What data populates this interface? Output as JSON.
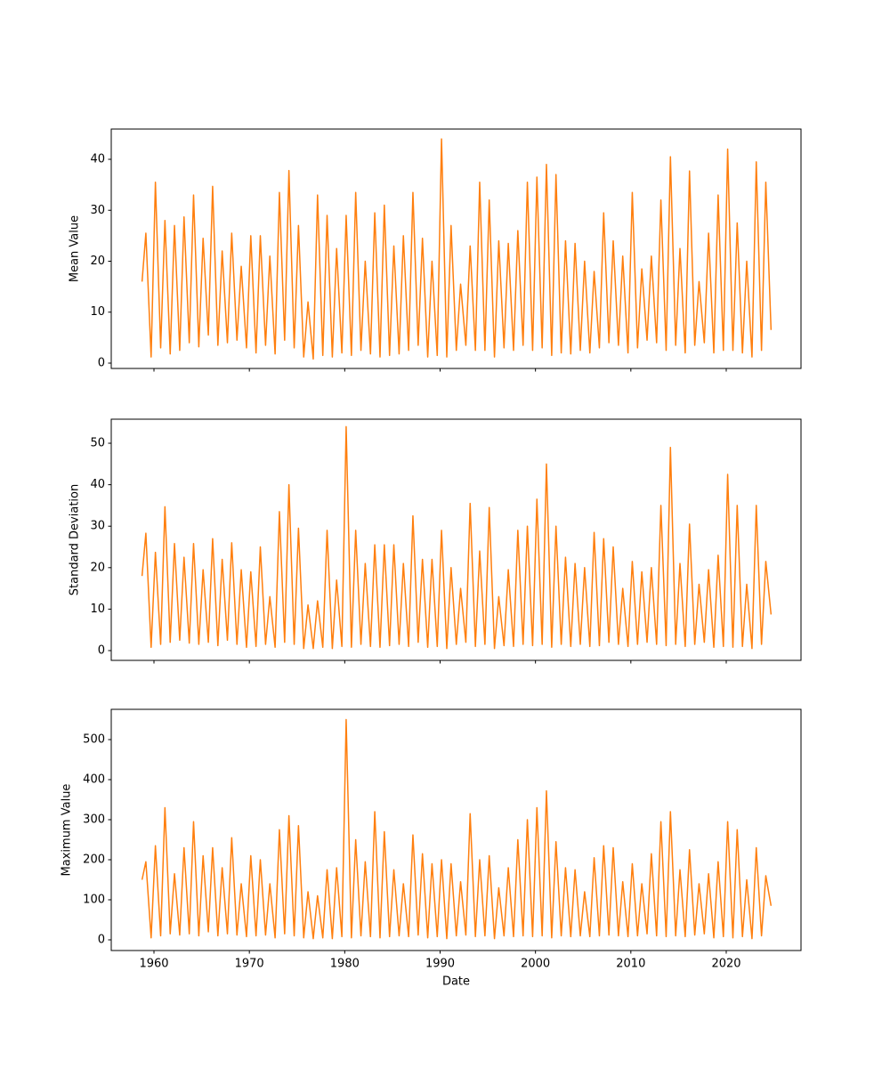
{
  "chart_data": [
    {
      "type": "line",
      "ylabel": "Mean Value",
      "xlim": [
        1955.52,
        2027.84
      ],
      "ylim": [
        -1.05,
        45.94
      ],
      "yticks": [
        0,
        10,
        20,
        30,
        40
      ],
      "x": [
        1958.75,
        1959.15,
        1959.7,
        1960.15,
        1960.7,
        1961.15,
        1961.7,
        1962.15,
        1962.7,
        1963.15,
        1963.7,
        1964.15,
        1964.7,
        1965.15,
        1965.7,
        1966.15,
        1966.7,
        1967.15,
        1967.7,
        1968.15,
        1968.7,
        1969.15,
        1969.7,
        1970.15,
        1970.7,
        1971.15,
        1971.7,
        1972.15,
        1972.7,
        1973.15,
        1973.7,
        1974.15,
        1974.7,
        1975.15,
        1975.7,
        1976.15,
        1976.7,
        1977.15,
        1977.7,
        1978.15,
        1978.7,
        1979.15,
        1979.7,
        1980.15,
        1980.7,
        1981.15,
        1981.7,
        1982.15,
        1982.7,
        1983.15,
        1983.7,
        1984.15,
        1984.7,
        1985.15,
        1985.7,
        1986.15,
        1986.7,
        1987.15,
        1987.7,
        1988.15,
        1988.7,
        1989.15,
        1989.7,
        1990.15,
        1990.7,
        1991.15,
        1991.7,
        1992.15,
        1992.7,
        1993.15,
        1993.7,
        1994.15,
        1994.7,
        1995.15,
        1995.7,
        1996.15,
        1996.7,
        1997.15,
        1997.7,
        1998.15,
        1998.7,
        1999.15,
        1999.7,
        2000.15,
        2000.7,
        2001.15,
        2001.7,
        2002.15,
        2002.7,
        2003.15,
        2003.7,
        2004.15,
        2004.7,
        2005.15,
        2005.7,
        2006.15,
        2006.7,
        2007.15,
        2007.7,
        2008.15,
        2008.7,
        2009.15,
        2009.7,
        2010.15,
        2010.7,
        2011.15,
        2011.7,
        2012.15,
        2012.7,
        2013.15,
        2013.7,
        2014.15,
        2014.7,
        2015.15,
        2015.7,
        2016.15,
        2016.7,
        2017.15,
        2017.7,
        2018.15,
        2018.7,
        2019.15,
        2019.7,
        2020.15,
        2020.7,
        2021.15,
        2021.7,
        2022.15,
        2022.7,
        2023.15,
        2023.7,
        2024.15,
        2024.7
      ],
      "series": [
        {
          "color": "#ff7f0e",
          "values": [
            16,
            25.5,
            1.2,
            35.5,
            3,
            28,
            1.8,
            27,
            2.5,
            28.7,
            4,
            33,
            3.2,
            24.5,
            5.5,
            34.7,
            3.5,
            22,
            4,
            25.5,
            4.5,
            19,
            3,
            25,
            2,
            25,
            3.5,
            21,
            1.8,
            33.5,
            4.5,
            37.8,
            3,
            27,
            1.2,
            12,
            0.8,
            33,
            1.5,
            29,
            1.2,
            22.5,
            2,
            29,
            1.5,
            33.5,
            2.5,
            20,
            1.8,
            29.5,
            1.2,
            31,
            1.5,
            23,
            1.8,
            25,
            2.5,
            33.5,
            3.5,
            24.5,
            1.2,
            20,
            1.5,
            44,
            1.2,
            27,
            2.5,
            15.5,
            3.5,
            23,
            2.5,
            35.5,
            2.5,
            32,
            1.2,
            24,
            3,
            23.5,
            2.5,
            26,
            3.5,
            35.5,
            2.5,
            36.5,
            3,
            39,
            1.5,
            37,
            2,
            24,
            1.8,
            23.5,
            2.5,
            20,
            2,
            18,
            3,
            29.5,
            4,
            24,
            3.5,
            21,
            2,
            33.5,
            3,
            18.5,
            4.5,
            21,
            4,
            32,
            2.5,
            40.5,
            3.5,
            22.5,
            2,
            37.7,
            3.5,
            16,
            4,
            25.5,
            2,
            33,
            2.5,
            42,
            2.5,
            27.5,
            2,
            20,
            1.2,
            39.5,
            2.5,
            35.5,
            6.5
          ]
        }
      ]
    },
    {
      "type": "line",
      "ylabel": "Standard Deviation",
      "xlim": [
        1955.52,
        2027.84
      ],
      "ylim": [
        -2.36,
        55.8
      ],
      "yticks": [
        0,
        10,
        20,
        30,
        40,
        50
      ],
      "x": [
        1958.75,
        1959.15,
        1959.7,
        1960.15,
        1960.7,
        1961.15,
        1961.7,
        1962.15,
        1962.7,
        1963.15,
        1963.7,
        1964.15,
        1964.7,
        1965.15,
        1965.7,
        1966.15,
        1966.7,
        1967.15,
        1967.7,
        1968.15,
        1968.7,
        1969.15,
        1969.7,
        1970.15,
        1970.7,
        1971.15,
        1971.7,
        1972.15,
        1972.7,
        1973.15,
        1973.7,
        1974.15,
        1974.7,
        1975.15,
        1975.7,
        1976.15,
        1976.7,
        1977.15,
        1977.7,
        1978.15,
        1978.7,
        1979.15,
        1979.7,
        1980.15,
        1980.7,
        1981.15,
        1981.7,
        1982.15,
        1982.7,
        1983.15,
        1983.7,
        1984.15,
        1984.7,
        1985.15,
        1985.7,
        1986.15,
        1986.7,
        1987.15,
        1987.7,
        1988.15,
        1988.7,
        1989.15,
        1989.7,
        1990.15,
        1990.7,
        1991.15,
        1991.7,
        1992.15,
        1992.7,
        1993.15,
        1993.7,
        1994.15,
        1994.7,
        1995.15,
        1995.7,
        1996.15,
        1996.7,
        1997.15,
        1997.7,
        1998.15,
        1998.7,
        1999.15,
        1999.7,
        2000.15,
        2000.7,
        2001.15,
        2001.7,
        2002.15,
        2002.7,
        2003.15,
        2003.7,
        2004.15,
        2004.7,
        2005.15,
        2005.7,
        2006.15,
        2006.7,
        2007.15,
        2007.7,
        2008.15,
        2008.7,
        2009.15,
        2009.7,
        2010.15,
        2010.7,
        2011.15,
        2011.7,
        2012.15,
        2012.7,
        2013.15,
        2013.7,
        2014.15,
        2014.7,
        2015.15,
        2015.7,
        2016.15,
        2016.7,
        2017.15,
        2017.7,
        2018.15,
        2018.7,
        2019.15,
        2019.7,
        2020.15,
        2020.7,
        2021.15,
        2021.7,
        2022.15,
        2022.7,
        2023.15,
        2023.7,
        2024.15,
        2024.7
      ],
      "series": [
        {
          "color": "#ff7f0e",
          "values": [
            18,
            28.3,
            0.8,
            23.7,
            1.5,
            34.7,
            2,
            25.8,
            2.5,
            22.5,
            1.8,
            25.8,
            1.5,
            19.5,
            2,
            27,
            1.2,
            22,
            2.5,
            26,
            1.5,
            19.5,
            0.8,
            19,
            1,
            25,
            1.5,
            13,
            0.8,
            33.5,
            2,
            40,
            1.5,
            29.5,
            0.5,
            11,
            0.5,
            12,
            0.8,
            29,
            0.5,
            17,
            1,
            54,
            0.8,
            29,
            1.5,
            21,
            1,
            25.5,
            0.8,
            25.5,
            1.2,
            25.5,
            1.5,
            21,
            1,
            32.5,
            2,
            22,
            0.8,
            22,
            1,
            29,
            0.5,
            20,
            1.5,
            15,
            2,
            35.5,
            1,
            24,
            1.5,
            34.5,
            0.5,
            13,
            1.2,
            19.5,
            1,
            29,
            1.5,
            30,
            1.2,
            36.5,
            1.5,
            45,
            0.8,
            30,
            1.5,
            22.5,
            1,
            21,
            1.5,
            20,
            1,
            28.5,
            1.2,
            27,
            2,
            25,
            1.5,
            15,
            1,
            21.5,
            1.5,
            19,
            2,
            20,
            1.5,
            35,
            1.2,
            49,
            1.5,
            21,
            1,
            30.5,
            1.5,
            16,
            2,
            19.5,
            0.8,
            23,
            1,
            42.5,
            0.8,
            35,
            1,
            16,
            0.5,
            35,
            1.5,
            21.5,
            8.7
          ]
        }
      ]
    },
    {
      "type": "line",
      "ylabel": "Maximum Value",
      "xlabel": "Date",
      "xlim": [
        1955.52,
        2027.84
      ],
      "ylim": [
        -26.7,
        575.6
      ],
      "yticks": [
        0,
        100,
        200,
        300,
        400,
        500
      ],
      "xticks": [
        1960,
        1970,
        1980,
        1990,
        2000,
        2010,
        2020
      ],
      "x": [
        1958.75,
        1959.15,
        1959.7,
        1960.15,
        1960.7,
        1961.15,
        1961.7,
        1962.15,
        1962.7,
        1963.15,
        1963.7,
        1964.15,
        1964.7,
        1965.15,
        1965.7,
        1966.15,
        1966.7,
        1967.15,
        1967.7,
        1968.15,
        1968.7,
        1969.15,
        1969.7,
        1970.15,
        1970.7,
        1971.15,
        1971.7,
        1972.15,
        1972.7,
        1973.15,
        1973.7,
        1974.15,
        1974.7,
        1975.15,
        1975.7,
        1976.15,
        1976.7,
        1977.15,
        1977.7,
        1978.15,
        1978.7,
        1979.15,
        1979.7,
        1980.15,
        1980.7,
        1981.15,
        1981.7,
        1982.15,
        1982.7,
        1983.15,
        1983.7,
        1984.15,
        1984.7,
        1985.15,
        1985.7,
        1986.15,
        1986.7,
        1987.15,
        1987.7,
        1988.15,
        1988.7,
        1989.15,
        1989.7,
        1990.15,
        1990.7,
        1991.15,
        1991.7,
        1992.15,
        1992.7,
        1993.15,
        1993.7,
        1994.15,
        1994.7,
        1995.15,
        1995.7,
        1996.15,
        1996.7,
        1997.15,
        1997.7,
        1998.15,
        1998.7,
        1999.15,
        1999.7,
        2000.15,
        2000.7,
        2001.15,
        2001.7,
        2002.15,
        2002.7,
        2003.15,
        2003.7,
        2004.15,
        2004.7,
        2005.15,
        2005.7,
        2006.15,
        2006.7,
        2007.15,
        2007.7,
        2008.15,
        2008.7,
        2009.15,
        2009.7,
        2010.15,
        2010.7,
        2011.15,
        2011.7,
        2012.15,
        2012.7,
        2013.15,
        2013.7,
        2014.15,
        2014.7,
        2015.15,
        2015.7,
        2016.15,
        2016.7,
        2017.15,
        2017.7,
        2018.15,
        2018.7,
        2019.15,
        2019.7,
        2020.15,
        2020.7,
        2021.15,
        2021.7,
        2022.15,
        2022.7,
        2023.15,
        2023.7,
        2024.15,
        2024.7
      ],
      "series": [
        {
          "color": "#ff7f0e",
          "values": [
            150,
            195,
            5,
            235,
            10,
            330,
            15,
            165,
            12,
            230,
            15,
            295,
            10,
            210,
            20,
            230,
            10,
            180,
            15,
            255,
            12,
            140,
            8,
            210,
            10,
            200,
            12,
            140,
            5,
            275,
            15,
            310,
            10,
            285,
            5,
            120,
            3,
            110,
            5,
            175,
            3,
            180,
            8,
            550,
            5,
            250,
            10,
            195,
            8,
            320,
            5,
            270,
            8,
            175,
            10,
            140,
            8,
            262,
            12,
            215,
            5,
            190,
            8,
            200,
            3,
            190,
            10,
            145,
            12,
            315,
            8,
            200,
            10,
            210,
            3,
            130,
            10,
            180,
            8,
            250,
            10,
            300,
            8,
            330,
            10,
            372,
            5,
            245,
            10,
            180,
            8,
            175,
            10,
            120,
            8,
            205,
            10,
            235,
            12,
            230,
            10,
            145,
            8,
            190,
            10,
            140,
            15,
            215,
            10,
            295,
            8,
            320,
            10,
            175,
            8,
            225,
            12,
            140,
            15,
            165,
            5,
            195,
            8,
            295,
            5,
            275,
            8,
            150,
            3,
            230,
            10,
            160,
            85
          ]
        }
      ]
    }
  ]
}
